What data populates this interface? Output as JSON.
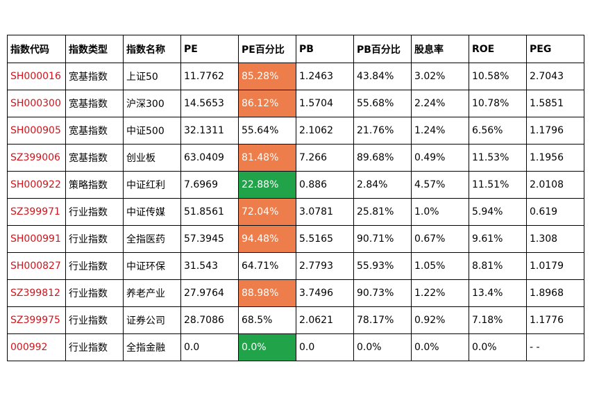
{
  "colors": {
    "code_text": "#d0141b",
    "high_percentile": "#ed7d4a",
    "low_percentile": "#21a34a"
  },
  "table": {
    "headers": [
      "指数代码",
      "指数类型",
      "指数名称",
      "PE",
      "PE百分比",
      "PB",
      "PB百分比",
      "股息率",
      "ROE",
      "PEG"
    ],
    "rows": [
      {
        "code": "SH000016",
        "type": "宽基指数",
        "name": "上证50",
        "pe": "11.7762",
        "pe_pct": "85.28%",
        "pe_level": "high",
        "pb": "1.2463",
        "pb_pct": "43.84%",
        "dividend": "3.02%",
        "roe": "10.58%",
        "peg": "2.7043"
      },
      {
        "code": "SH000300",
        "type": "宽基指数",
        "name": "沪深300",
        "pe": "14.5653",
        "pe_pct": "86.12%",
        "pe_level": "high",
        "pb": "1.5704",
        "pb_pct": "55.68%",
        "dividend": "2.24%",
        "roe": "10.78%",
        "peg": "1.5851"
      },
      {
        "code": "SH000905",
        "type": "宽基指数",
        "name": "中证500",
        "pe": "32.1311",
        "pe_pct": "55.64%",
        "pe_level": "normal",
        "pb": "2.1062",
        "pb_pct": "21.76%",
        "dividend": "1.24%",
        "roe": "6.56%",
        "peg": "1.1796"
      },
      {
        "code": "SZ399006",
        "type": "宽基指数",
        "name": "创业板",
        "pe": "63.0409",
        "pe_pct": "81.48%",
        "pe_level": "high",
        "pb": "7.266",
        "pb_pct": "89.68%",
        "dividend": "0.49%",
        "roe": "11.53%",
        "peg": "1.1956"
      },
      {
        "code": "SH000922",
        "type": "策略指数",
        "name": "中证红利",
        "pe": "7.6969",
        "pe_pct": "22.88%",
        "pe_level": "low",
        "pb": "0.886",
        "pb_pct": "2.84%",
        "dividend": "4.57%",
        "roe": "11.51%",
        "peg": "2.0108"
      },
      {
        "code": "SZ399971",
        "type": "行业指数",
        "name": "中证传媒",
        "pe": "51.8561",
        "pe_pct": "72.04%",
        "pe_level": "high",
        "pb": "3.0781",
        "pb_pct": "25.81%",
        "dividend": "1.0%",
        "roe": "5.94%",
        "peg": "0.619"
      },
      {
        "code": "SH000991",
        "type": "行业指数",
        "name": "全指医药",
        "pe": "57.3945",
        "pe_pct": "94.48%",
        "pe_level": "high",
        "pb": "5.5165",
        "pb_pct": "90.71%",
        "dividend": "0.67%",
        "roe": "9.61%",
        "peg": "1.308"
      },
      {
        "code": "SH000827",
        "type": "行业指数",
        "name": "中证环保",
        "pe": "31.543",
        "pe_pct": "64.71%",
        "pe_level": "normal",
        "pb": "2.7793",
        "pb_pct": "55.93%",
        "dividend": "1.05%",
        "roe": "8.81%",
        "peg": "1.0179"
      },
      {
        "code": "SZ399812",
        "type": "行业指数",
        "name": "养老产业",
        "pe": "27.9764",
        "pe_pct": "88.98%",
        "pe_level": "high",
        "pb": "3.7496",
        "pb_pct": "90.73%",
        "dividend": "1.22%",
        "roe": "13.4%",
        "peg": "1.8968"
      },
      {
        "code": "SZ399975",
        "type": "行业指数",
        "name": "证券公司",
        "pe": "28.7086",
        "pe_pct": "68.5%",
        "pe_level": "normal",
        "pb": "2.0621",
        "pb_pct": "78.17%",
        "dividend": "0.92%",
        "roe": "7.18%",
        "peg": "1.1776"
      },
      {
        "code": "000992",
        "type": "行业指数",
        "name": "全指金融",
        "pe": "0.0",
        "pe_pct": "0.0%",
        "pe_level": "low",
        "pb": "0.0",
        "pb_pct": "0.0%",
        "dividend": "0.0%",
        "roe": "0.0%",
        "peg": "- -"
      }
    ]
  }
}
